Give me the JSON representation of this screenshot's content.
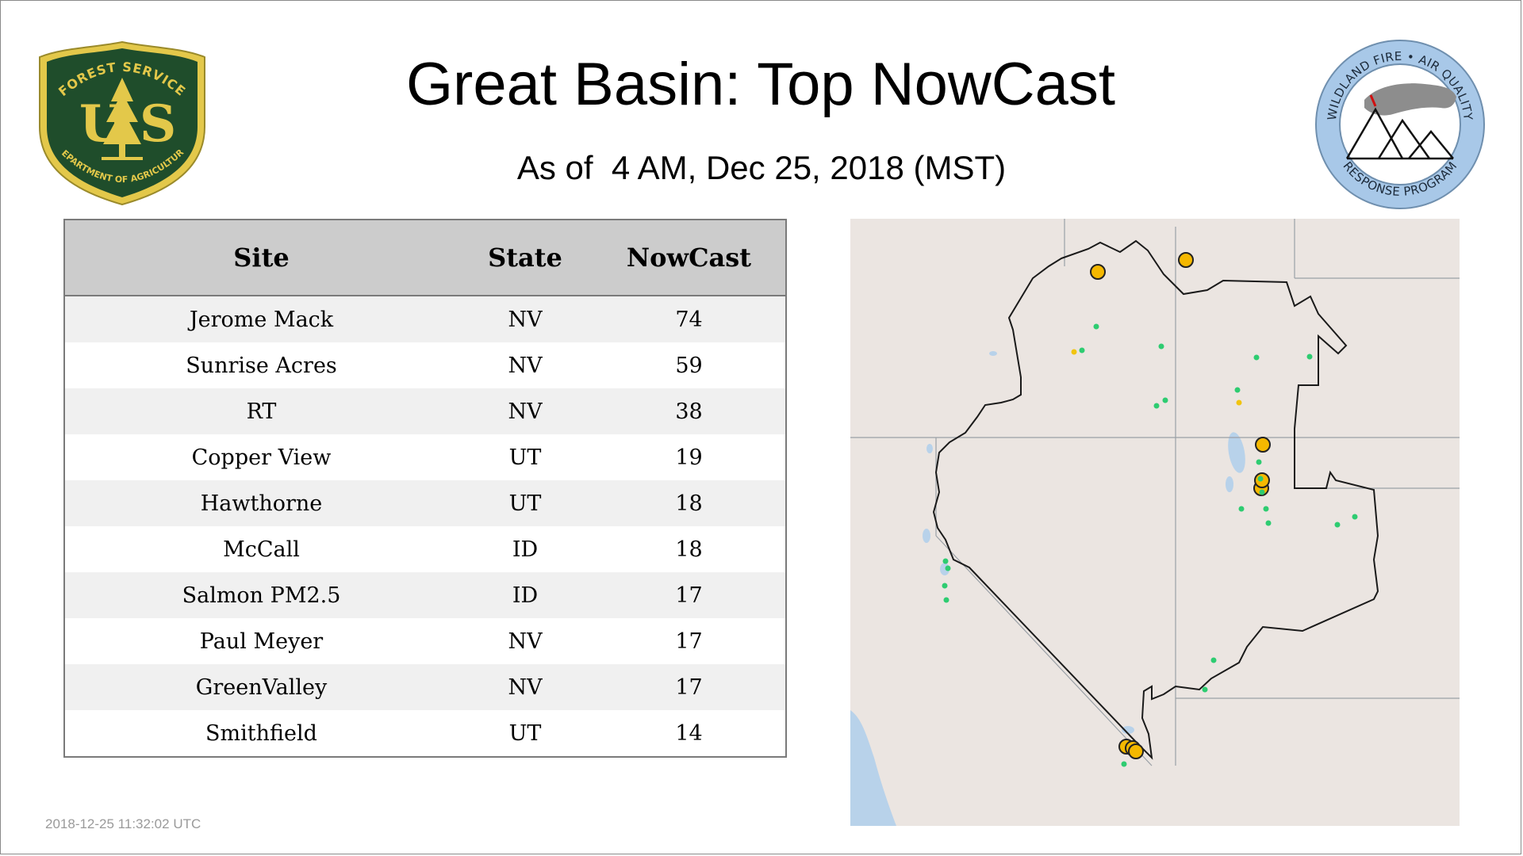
{
  "header": {
    "title": "Great Basin: Top NowCast",
    "subtitle": "As of  4 AM, Dec 25, 2018 (MST)"
  },
  "logos": {
    "forest_service": {
      "top_text": "FOREST SERVICE",
      "letters": "US",
      "bottom_text": "DEPARTMENT OF AGRICULTURE"
    },
    "wildland": {
      "ring_top": "WILDLAND FIRE • AIR QUALITY",
      "ring_bottom": "RESPONSE PROGRAM"
    }
  },
  "table": {
    "headers": [
      "Site",
      "State",
      "NowCast"
    ],
    "rows": [
      [
        "Jerome Mack",
        "NV",
        "74"
      ],
      [
        "Sunrise Acres",
        "NV",
        "59"
      ],
      [
        "RT",
        "NV",
        "38"
      ],
      [
        "Copper View",
        "UT",
        "19"
      ],
      [
        "Hawthorne",
        "UT",
        "18"
      ],
      [
        "McCall",
        "ID",
        "18"
      ],
      [
        "Salmon PM2.5",
        "ID",
        "17"
      ],
      [
        "Paul Meyer",
        "NV",
        "17"
      ],
      [
        "GreenValley",
        "NV",
        "17"
      ],
      [
        "Smithfield",
        "UT",
        "14"
      ]
    ]
  },
  "colors": {
    "good": "#2ecc71",
    "moderate": "#f1c40f",
    "usg": "#f5b800",
    "fs_green": "#1f4d2b",
    "fs_gold": "#e3c84a",
    "wf_blue": "#a8c8e8",
    "map_land": "#ebe5e1",
    "map_water": "#b8d2ea"
  },
  "footer": {
    "timestamp": "2018-12-25 11:32:02 UTC"
  }
}
